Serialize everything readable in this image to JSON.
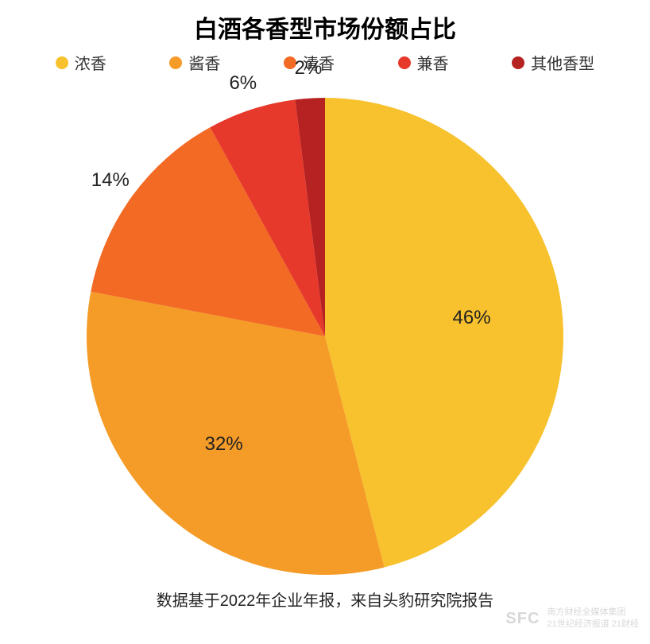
{
  "chart": {
    "type": "pie",
    "title": "白酒各香型市场份额占比",
    "title_fontsize": 30,
    "title_color": "#000000",
    "background_color": "#ffffff",
    "legend_fontsize": 20,
    "legend_position": "top",
    "slice_label_fontsize": 24,
    "slice_label_color": "#222222",
    "footer": "数据基于2022年企业年报，来自头豹研究院报告",
    "footer_fontsize": 20,
    "footer_color": "#222222",
    "pie_radius": 300,
    "start_angle_deg": -90,
    "slices": [
      {
        "label": "浓香",
        "value": 46,
        "display": "46%",
        "color": "#f7c22d"
      },
      {
        "label": "酱香",
        "value": 32,
        "display": "32%",
        "color": "#f59b27"
      },
      {
        "label": "清香",
        "value": 14,
        "display": "14%",
        "color": "#f26a24"
      },
      {
        "label": "兼香",
        "value": 6,
        "display": "6%",
        "color": "#e6392b"
      },
      {
        "label": "其他香型",
        "value": 2,
        "display": "2%",
        "color": "#b62221"
      }
    ]
  },
  "watermark": {
    "sfc": "SFC",
    "line1": "南方财经全媒体集团",
    "line2": "21世纪经济报道   21财经"
  }
}
